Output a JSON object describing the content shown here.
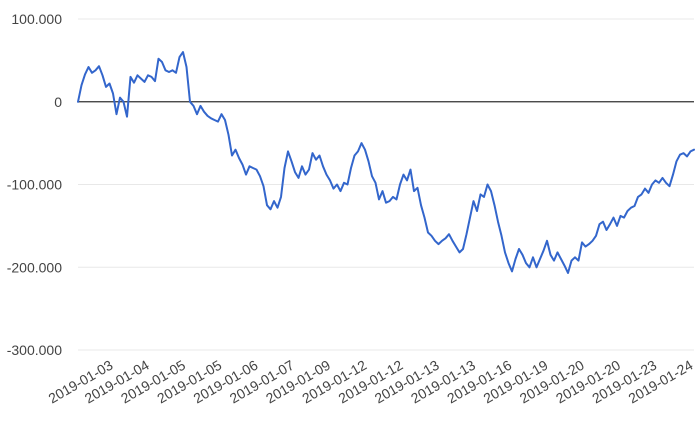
{
  "chart_data": {
    "type": "line",
    "title": "",
    "xlabel": "",
    "ylabel": "",
    "ylim": [
      -300000,
      100000
    ],
    "y_ticks": [
      100000,
      0,
      -100000,
      -200000,
      -300000
    ],
    "y_tick_labels": [
      "100.000",
      "0",
      "-100.000",
      "-200.000",
      "-300.000"
    ],
    "x_tick_labels": [
      "2019-01-03",
      "2019-01-04",
      "2019-01-05",
      "2019-01-05",
      "2019-01-06",
      "2019-01-07",
      "2019-01-09",
      "2019-01-12",
      "2019-01-12",
      "2019-01-13",
      "2019-01-13",
      "2019-01-16",
      "2019-01-19",
      "2019-01-20",
      "2019-01-20",
      "2019-01-23",
      "2019-01-24"
    ],
    "grid": true,
    "zero_line": true,
    "legend": "none",
    "colors": {
      "line": "#3366cc",
      "grid": "#e8e8e8",
      "zero": "#333333",
      "text": "#444444"
    },
    "series": [
      {
        "values": [
          0,
          20000,
          33000,
          42000,
          35000,
          38000,
          43000,
          32000,
          18000,
          22000,
          10000,
          -15000,
          5000,
          0,
          -18000,
          30000,
          23000,
          32000,
          28000,
          24000,
          32000,
          30000,
          25000,
          52000,
          48000,
          38000,
          36000,
          38000,
          35000,
          54000,
          60000,
          42000,
          0,
          -5000,
          -15000,
          -5000,
          -12000,
          -17000,
          -20000,
          -22000,
          -24000,
          -15000,
          -22000,
          -40000,
          -65000,
          -58000,
          -68000,
          -76000,
          -88000,
          -78000,
          -80000,
          -82000,
          -90000,
          -102000,
          -125000,
          -130000,
          -120000,
          -128000,
          -115000,
          -80000,
          -60000,
          -72000,
          -85000,
          -92000,
          -78000,
          -88000,
          -82000,
          -62000,
          -70000,
          -65000,
          -78000,
          -88000,
          -95000,
          -105000,
          -100000,
          -108000,
          -98000,
          -100000,
          -80000,
          -65000,
          -60000,
          -50000,
          -58000,
          -72000,
          -90000,
          -98000,
          -118000,
          -108000,
          -122000,
          -120000,
          -115000,
          -118000,
          -100000,
          -88000,
          -95000,
          -82000,
          -108000,
          -104000,
          -125000,
          -140000,
          -158000,
          -162000,
          -168000,
          -172000,
          -168000,
          -165000,
          -160000,
          -168000,
          -175000,
          -182000,
          -178000,
          -160000,
          -140000,
          -120000,
          -132000,
          -112000,
          -115000,
          -100000,
          -108000,
          -125000,
          -145000,
          -162000,
          -182000,
          -195000,
          -205000,
          -190000,
          -178000,
          -185000,
          -195000,
          -200000,
          -188000,
          -200000,
          -190000,
          -180000,
          -168000,
          -185000,
          -192000,
          -182000,
          -190000,
          -198000,
          -207000,
          -192000,
          -188000,
          -192000,
          -170000,
          -175000,
          -172000,
          -168000,
          -162000,
          -148000,
          -145000,
          -155000,
          -148000,
          -140000,
          -150000,
          -138000,
          -140000,
          -132000,
          -128000,
          -126000,
          -115000,
          -112000,
          -105000,
          -110000,
          -100000,
          -95000,
          -98000,
          -92000,
          -98000,
          -102000,
          -88000,
          -72000,
          -64000,
          -62000,
          -66000,
          -60000,
          -58000
        ]
      }
    ]
  }
}
